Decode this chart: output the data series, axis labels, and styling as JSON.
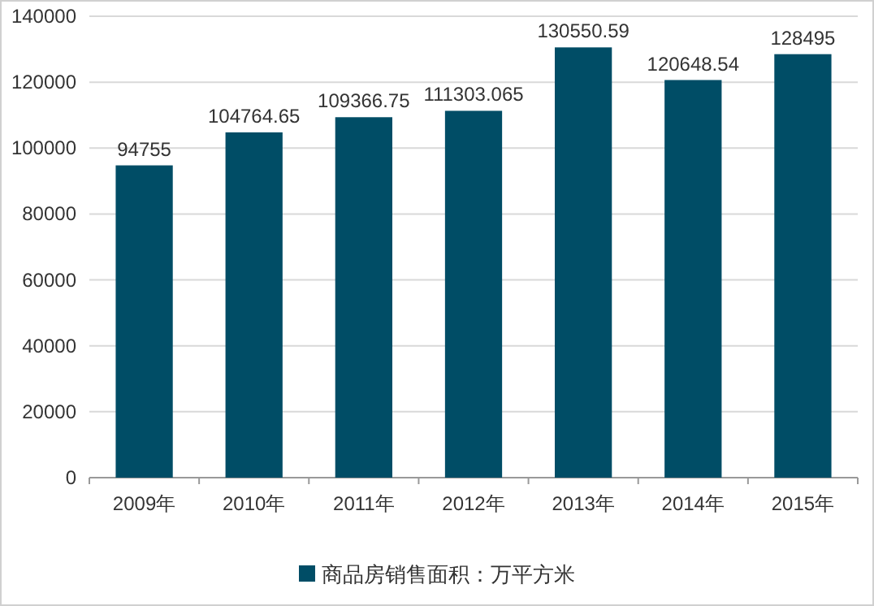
{
  "chart_data": {
    "type": "bar",
    "categories": [
      "2009年",
      "2010年",
      "2011年",
      "2012年",
      "2013年",
      "2014年",
      "2015年"
    ],
    "series": [
      {
        "name": "商品房销售面积：万平方米",
        "color": "#004d66",
        "values": [
          94755,
          104764.65,
          109366.75,
          111303.065,
          130550.59,
          120648.54,
          128495
        ]
      }
    ],
    "ylim": [
      0,
      140000
    ],
    "yticks": [
      0,
      20000,
      40000,
      60000,
      80000,
      100000,
      120000,
      140000
    ],
    "grid": "y",
    "legend": "bottom",
    "data_labels": true
  }
}
